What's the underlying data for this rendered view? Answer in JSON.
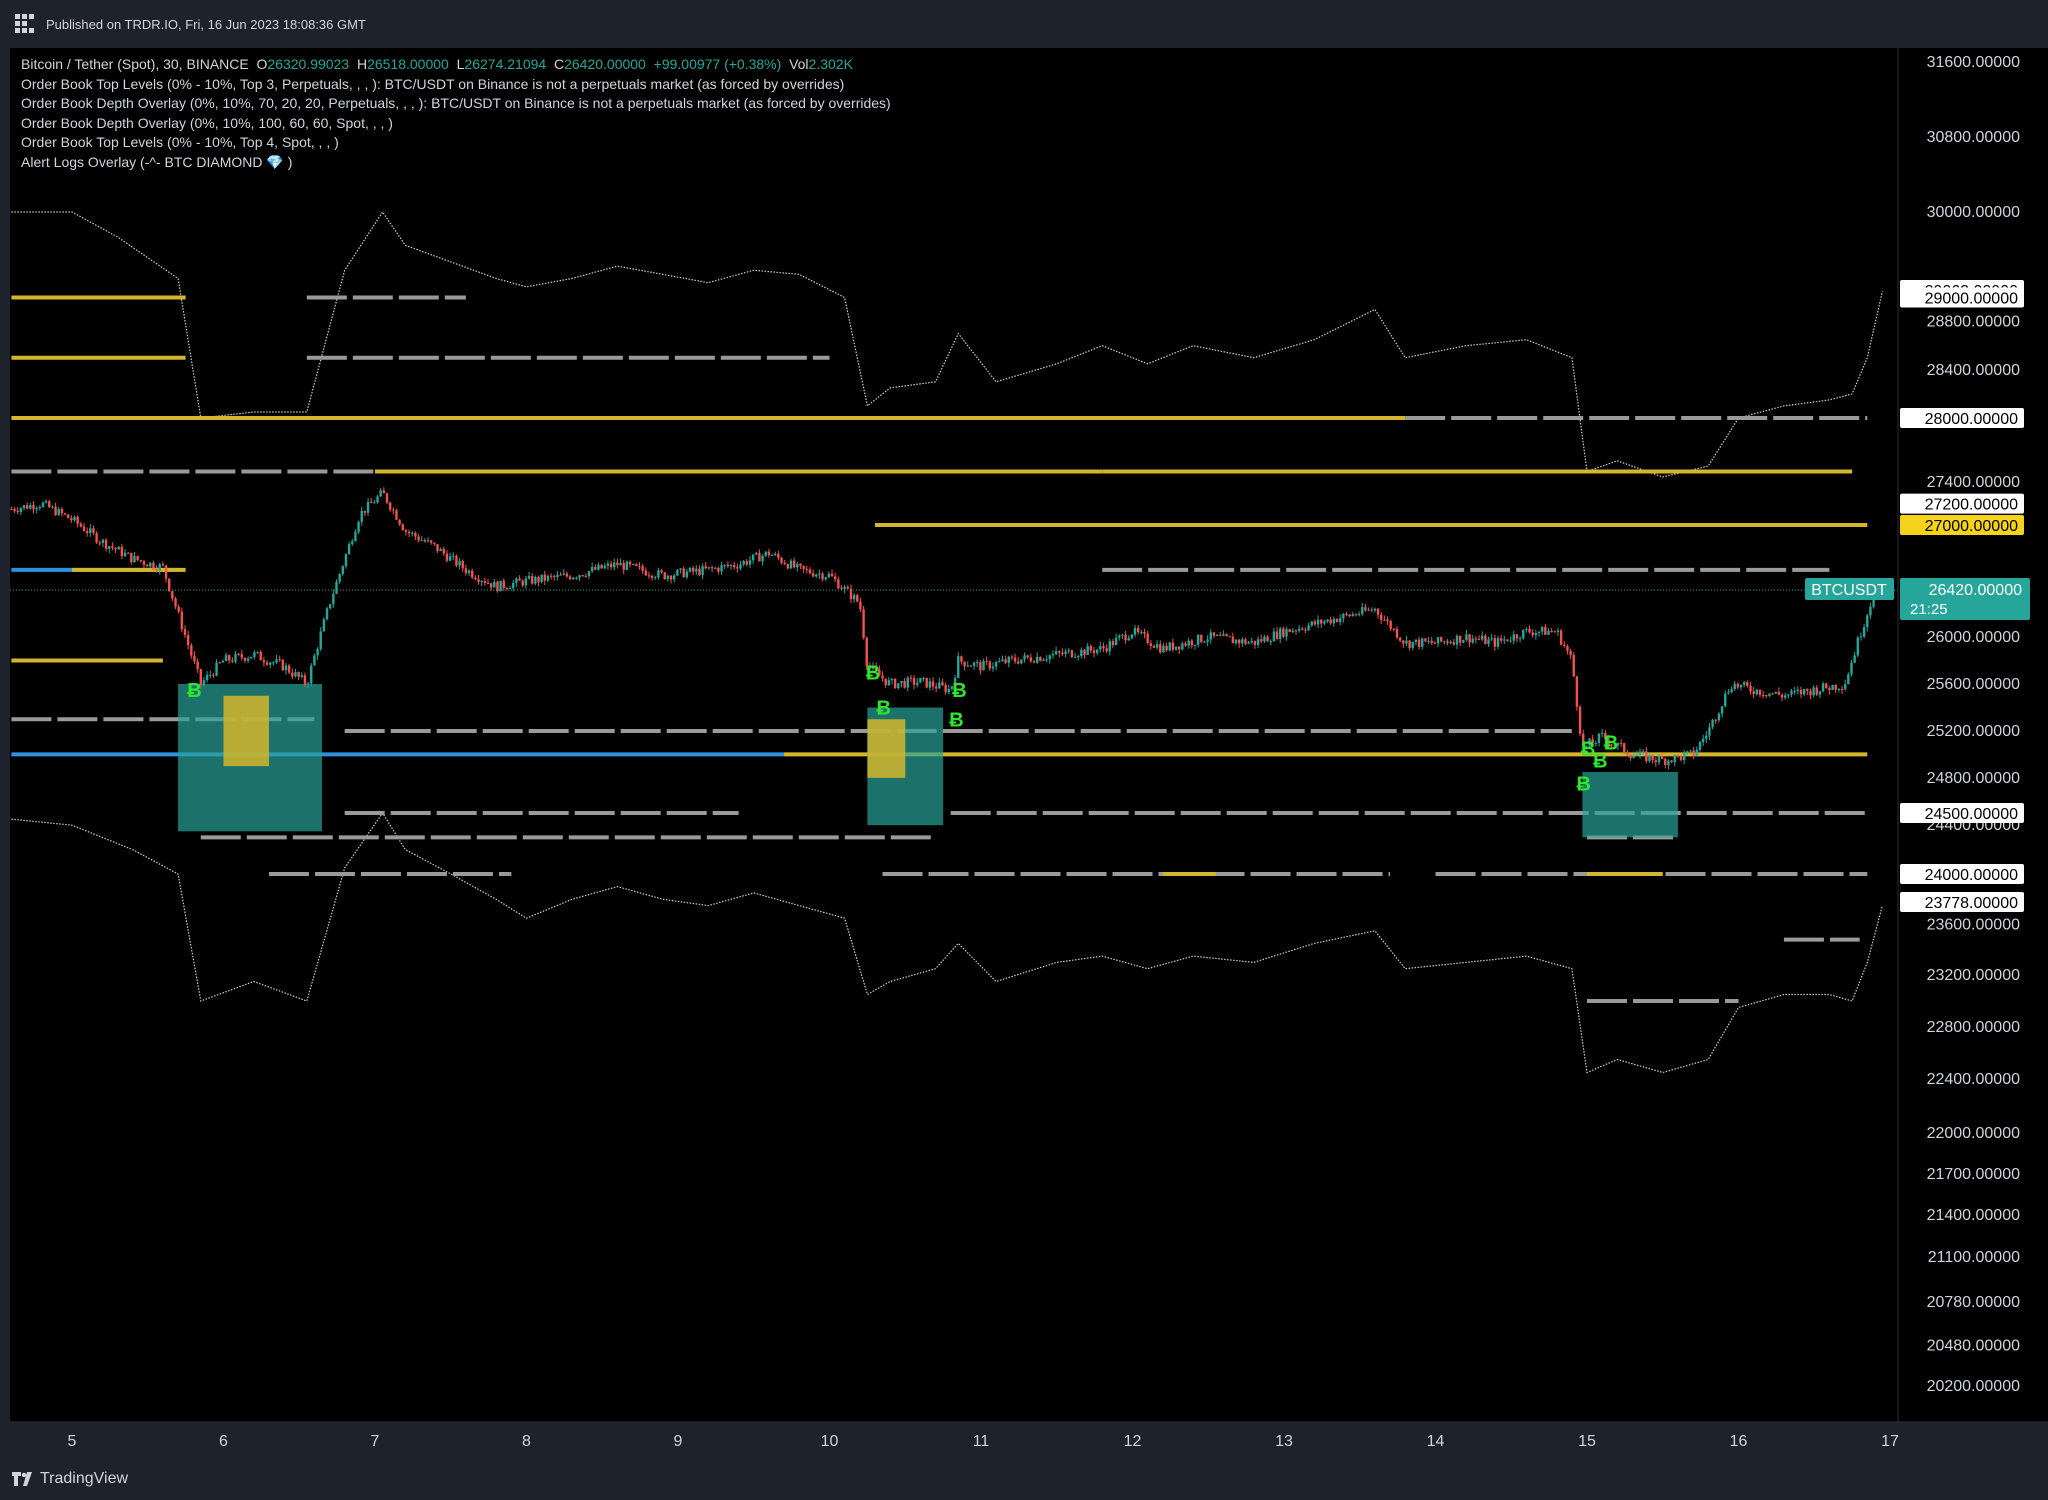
{
  "header": {
    "published": "Published on TRDR.IO, Fri, 16 Jun 2023 18:08:36 GMT"
  },
  "legend": {
    "symbol": "Bitcoin / Tether (Spot), 30, BINANCE",
    "o_label": "O",
    "o_value": "26320.99023",
    "h_label": "H",
    "h_value": "26518.00000",
    "l_label": "L",
    "l_value": "26274.21094",
    "c_label": "C",
    "c_value": "26420.00000",
    "change": "+99.00977 (+0.38%)",
    "vol_label": "Vol",
    "vol_value": "2.302K",
    "indicators": [
      "Order Book Top Levels (0% - 10%, Top 3, Perpetuals, , , ): BTC/USDT on Binance is not a perpetuals market (as forced by overrides)",
      "Order Book Depth Overlay (0%, 10%, 70, 20, 20, Perpetuals, , , ): BTC/USDT on Binance is not a perpetuals market (as forced by overrides)",
      "Order Book Depth Overlay (0%, 10%, 100, 60, 60, Spot, , , )",
      "Order Book Top Levels (0% - 10%, Top 4, Spot, , , )",
      "Alert Logs Overlay (-^- BTC DIAMOND 💎 )"
    ]
  },
  "footer": {
    "brand": "TradingView"
  },
  "colors": {
    "background": "#000000",
    "up": "#26a69a",
    "down": "#ef5350",
    "gold": "#d4b62c",
    "grey": "#9a9a9a",
    "blue": "#2f8fe0",
    "band": "#cfcfcf",
    "signal": "#2ee62e",
    "teal_fill": "#2aa198"
  },
  "chart_data": {
    "type": "candlestick",
    "symbol": "BTCUSDT",
    "interval": "30",
    "x_ticks": [
      "5",
      "6",
      "7",
      "8",
      "9",
      "10",
      "11",
      "12",
      "13",
      "14",
      "15",
      "16",
      "17"
    ],
    "y_ticks": [
      "31600.00000",
      "30800.00000",
      "30000.00000",
      "28800.00000",
      "28400.00000",
      "27400.00000",
      "26000.00000",
      "25600.00000",
      "25200.00000",
      "24800.00000",
      "24400.00000",
      "23600.00000",
      "23200.00000",
      "22800.00000",
      "22400.00000",
      "22000.00000",
      "21700.00000",
      "21400.00000",
      "21100.00000",
      "20780.00000",
      "20480.00000",
      "20200.00000"
    ],
    "y_tick_values": [
      31600,
      30800,
      30000,
      28800,
      28400,
      27400,
      26000,
      25600,
      25200,
      24800,
      24400,
      23600,
      23200,
      22800,
      22400,
      22000,
      21700,
      21400,
      21100,
      20780,
      20480,
      20200
    ],
    "price_labels": [
      {
        "text": "29062.00000",
        "value": 29062,
        "style": "white"
      },
      {
        "text": "29000.00000",
        "value": 29000,
        "style": "white"
      },
      {
        "text": "28000.00000",
        "value": 28000,
        "style": "white"
      },
      {
        "text": "27200.00000",
        "value": 27200,
        "style": "white"
      },
      {
        "text": "27000.00000",
        "value": 27000,
        "style": "gold"
      },
      {
        "text": "24500.00000",
        "value": 24500,
        "style": "white"
      },
      {
        "text": "24000.00000",
        "value": 24000,
        "style": "white"
      },
      {
        "text": "23778.00000",
        "value": 23778,
        "style": "white"
      }
    ],
    "last_price": {
      "symbol_tag": "BTCUSDT",
      "price": "26420.00000",
      "countdown": "21:25",
      "value": 26420
    },
    "close_path": [
      [
        4.6,
        27150
      ],
      [
        4.8,
        27200
      ],
      [
        5.0,
        27050
      ],
      [
        5.2,
        26850
      ],
      [
        5.4,
        26700
      ],
      [
        5.6,
        26620
      ],
      [
        5.75,
        26000
      ],
      [
        5.85,
        25600
      ],
      [
        6.0,
        25800
      ],
      [
        6.2,
        25850
      ],
      [
        6.4,
        25750
      ],
      [
        6.55,
        25600
      ],
      [
        6.7,
        26300
      ],
      [
        6.9,
        27100
      ],
      [
        7.05,
        27300
      ],
      [
        7.2,
        26950
      ],
      [
        7.4,
        26800
      ],
      [
        7.6,
        26600
      ],
      [
        7.8,
        26450
      ],
      [
        8.0,
        26500
      ],
      [
        8.3,
        26550
      ],
      [
        8.6,
        26650
      ],
      [
        8.9,
        26550
      ],
      [
        9.2,
        26600
      ],
      [
        9.4,
        26650
      ],
      [
        9.6,
        26750
      ],
      [
        9.8,
        26600
      ],
      [
        10.0,
        26550
      ],
      [
        10.2,
        26300
      ],
      [
        10.25,
        25750
      ],
      [
        10.4,
        25600
      ],
      [
        10.6,
        25620
      ],
      [
        10.8,
        25550
      ],
      [
        10.85,
        25800
      ],
      [
        11.0,
        25750
      ],
      [
        11.2,
        25800
      ],
      [
        11.5,
        25850
      ],
      [
        11.8,
        25900
      ],
      [
        12.0,
        26050
      ],
      [
        12.2,
        25900
      ],
      [
        12.5,
        26000
      ],
      [
        12.8,
        25950
      ],
      [
        13.0,
        26050
      ],
      [
        13.3,
        26150
      ],
      [
        13.6,
        26250
      ],
      [
        13.8,
        25950
      ],
      [
        14.0,
        25950
      ],
      [
        14.2,
        26000
      ],
      [
        14.4,
        25950
      ],
      [
        14.6,
        26050
      ],
      [
        14.8,
        26050
      ],
      [
        14.9,
        25800
      ],
      [
        14.97,
        25050
      ],
      [
        15.1,
        25150
      ],
      [
        15.3,
        25000
      ],
      [
        15.5,
        24950
      ],
      [
        15.7,
        25000
      ],
      [
        15.8,
        25200
      ],
      [
        15.95,
        25600
      ],
      [
        16.1,
        25550
      ],
      [
        16.3,
        25500
      ],
      [
        16.5,
        25550
      ],
      [
        16.7,
        25600
      ],
      [
        16.9,
        26420
      ]
    ],
    "upper_band": [
      [
        4.6,
        30000
      ],
      [
        5.0,
        30000
      ],
      [
        5.3,
        29700
      ],
      [
        5.7,
        29200
      ],
      [
        5.85,
        28000
      ],
      [
        6.2,
        28050
      ],
      [
        6.55,
        28050
      ],
      [
        6.8,
        29300
      ],
      [
        7.05,
        30000
      ],
      [
        7.2,
        29600
      ],
      [
        7.5,
        29400
      ],
      [
        7.8,
        29200
      ],
      [
        8.0,
        29100
      ],
      [
        8.3,
        29200
      ],
      [
        8.6,
        29350
      ],
      [
        8.9,
        29250
      ],
      [
        9.2,
        29150
      ],
      [
        9.5,
        29300
      ],
      [
        9.8,
        29250
      ],
      [
        10.1,
        29000
      ],
      [
        10.25,
        28100
      ],
      [
        10.4,
        28250
      ],
      [
        10.7,
        28300
      ],
      [
        10.85,
        28700
      ],
      [
        11.1,
        28300
      ],
      [
        11.5,
        28450
      ],
      [
        11.8,
        28600
      ],
      [
        12.1,
        28450
      ],
      [
        12.4,
        28600
      ],
      [
        12.8,
        28500
      ],
      [
        13.2,
        28650
      ],
      [
        13.6,
        28900
      ],
      [
        13.8,
        28500
      ],
      [
        14.2,
        28600
      ],
      [
        14.6,
        28650
      ],
      [
        14.9,
        28500
      ],
      [
        15.0,
        27500
      ],
      [
        15.2,
        27600
      ],
      [
        15.5,
        27450
      ],
      [
        15.8,
        27550
      ],
      [
        16.0,
        28000
      ],
      [
        16.3,
        28100
      ],
      [
        16.6,
        28150
      ],
      [
        16.75,
        28200
      ],
      [
        16.85,
        28500
      ],
      [
        16.95,
        29050
      ]
    ],
    "lower_band": [
      [
        4.6,
        24450
      ],
      [
        5.0,
        24400
      ],
      [
        5.4,
        24200
      ],
      [
        5.7,
        24000
      ],
      [
        5.85,
        23000
      ],
      [
        6.2,
        23150
      ],
      [
        6.55,
        23000
      ],
      [
        6.8,
        24050
      ],
      [
        7.05,
        24500
      ],
      [
        7.2,
        24200
      ],
      [
        7.5,
        24000
      ],
      [
        7.8,
        23800
      ],
      [
        8.0,
        23650
      ],
      [
        8.3,
        23800
      ],
      [
        8.6,
        23900
      ],
      [
        8.9,
        23800
      ],
      [
        9.2,
        23750
      ],
      [
        9.5,
        23850
      ],
      [
        9.8,
        23750
      ],
      [
        10.1,
        23650
      ],
      [
        10.25,
        23050
      ],
      [
        10.4,
        23150
      ],
      [
        10.7,
        23250
      ],
      [
        10.85,
        23450
      ],
      [
        11.1,
        23150
      ],
      [
        11.5,
        23300
      ],
      [
        11.8,
        23350
      ],
      [
        12.1,
        23250
      ],
      [
        12.4,
        23350
      ],
      [
        12.8,
        23300
      ],
      [
        13.2,
        23450
      ],
      [
        13.6,
        23550
      ],
      [
        13.8,
        23250
      ],
      [
        14.2,
        23300
      ],
      [
        14.6,
        23350
      ],
      [
        14.9,
        23250
      ],
      [
        15.0,
        22450
      ],
      [
        15.2,
        22550
      ],
      [
        15.5,
        22450
      ],
      [
        15.8,
        22550
      ],
      [
        16.0,
        22950
      ],
      [
        16.3,
        23050
      ],
      [
        16.6,
        23050
      ],
      [
        16.75,
        23000
      ],
      [
        16.85,
        23300
      ],
      [
        16.95,
        23750
      ]
    ],
    "level_lines": [
      {
        "x0": 4.6,
        "x1": 5.75,
        "y": 29000,
        "color": "gold"
      },
      {
        "x0": 6.55,
        "x1": 7.6,
        "y": 29000,
        "color": "grey"
      },
      {
        "x0": 4.6,
        "x1": 5.75,
        "y": 28500,
        "color": "gold"
      },
      {
        "x0": 6.55,
        "x1": 10.0,
        "y": 28500,
        "color": "grey"
      },
      {
        "x0": 4.6,
        "x1": 13.8,
        "y": 28000,
        "color": "gold"
      },
      {
        "x0": 13.8,
        "x1": 16.85,
        "y": 28000,
        "color": "grey"
      },
      {
        "x0": 4.6,
        "x1": 7.0,
        "y": 27500,
        "color": "grey"
      },
      {
        "x0": 7.0,
        "x1": 11.8,
        "y": 27500,
        "color": "gold"
      },
      {
        "x0": 11.8,
        "x1": 16.75,
        "y": 27500,
        "color": "gold"
      },
      {
        "x0": 10.3,
        "x1": 16.85,
        "y": 27000,
        "color": "gold"
      },
      {
        "x0": 4.6,
        "x1": 5.7,
        "y": 26600,
        "color": "blue"
      },
      {
        "x0": 5.0,
        "x1": 5.75,
        "y": 26600,
        "color": "gold"
      },
      {
        "x0": 11.8,
        "x1": 16.6,
        "y": 26600,
        "color": "grey"
      },
      {
        "x0": 4.6,
        "x1": 5.6,
        "y": 25800,
        "color": "gold"
      },
      {
        "x0": 4.6,
        "x1": 6.6,
        "y": 25300,
        "color": "grey"
      },
      {
        "x0": 6.8,
        "x1": 14.9,
        "y": 25200,
        "color": "grey"
      },
      {
        "x0": 4.6,
        "x1": 7.0,
        "y": 25000,
        "color": "blue"
      },
      {
        "x0": 7.0,
        "x1": 9.7,
        "y": 25000,
        "color": "blue"
      },
      {
        "x0": 9.7,
        "x1": 14.97,
        "y": 25000,
        "color": "gold"
      },
      {
        "x0": 14.97,
        "x1": 16.85,
        "y": 25000,
        "color": "gold"
      },
      {
        "x0": 10.8,
        "x1": 16.85,
        "y": 24500,
        "color": "grey"
      },
      {
        "x0": 6.8,
        "x1": 9.4,
        "y": 24500,
        "color": "grey"
      },
      {
        "x0": 5.85,
        "x1": 10.7,
        "y": 24300,
        "color": "grey"
      },
      {
        "x0": 15.0,
        "x1": 15.6,
        "y": 24300,
        "color": "grey"
      },
      {
        "x0": 6.3,
        "x1": 7.9,
        "y": 24000,
        "color": "grey"
      },
      {
        "x0": 10.35,
        "x1": 13.7,
        "y": 24000,
        "color": "grey"
      },
      {
        "x0": 12.2,
        "x1": 12.55,
        "y": 24000,
        "color": "gold"
      },
      {
        "x0": 14.0,
        "x1": 16.85,
        "y": 24000,
        "color": "grey"
      },
      {
        "x0": 15.0,
        "x1": 15.5,
        "y": 24000,
        "color": "gold"
      },
      {
        "x0": 15.0,
        "x1": 16.0,
        "y": 23000,
        "color": "grey"
      },
      {
        "x0": 16.3,
        "x1": 16.8,
        "y": 23480,
        "color": "grey"
      }
    ],
    "signals": [
      {
        "x": 5.8,
        "y": 25550
      },
      {
        "x": 10.28,
        "y": 25700
      },
      {
        "x": 10.35,
        "y": 25400
      },
      {
        "x": 10.85,
        "y": 25550
      },
      {
        "x": 10.83,
        "y": 25300
      },
      {
        "x": 14.97,
        "y": 24750
      },
      {
        "x": 15.0,
        "y": 25050
      },
      {
        "x": 15.08,
        "y": 24950
      },
      {
        "x": 15.15,
        "y": 25100
      }
    ],
    "depth_fills": [
      {
        "x0": 5.7,
        "x1": 6.65,
        "top": 25600,
        "bottom": 24350,
        "color": "teal"
      },
      {
        "x0": 6.0,
        "x1": 6.3,
        "top": 25500,
        "bottom": 24900,
        "color": "gold"
      },
      {
        "x0": 10.25,
        "x1": 10.75,
        "top": 25400,
        "bottom": 24400,
        "color": "teal"
      },
      {
        "x0": 10.25,
        "x1": 10.5,
        "top": 25300,
        "bottom": 24800,
        "color": "gold"
      },
      {
        "x0": 14.97,
        "x1": 15.6,
        "top": 24850,
        "bottom": 24300,
        "color": "teal"
      }
    ]
  }
}
